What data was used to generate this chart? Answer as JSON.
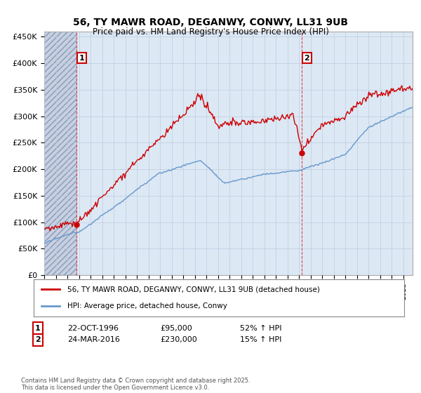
{
  "title": "56, TY MAWR ROAD, DEGANWY, CONWY, LL31 9UB",
  "subtitle": "Price paid vs. HM Land Registry's House Price Index (HPI)",
  "ylim": [
    0,
    460000
  ],
  "yticks": [
    0,
    50000,
    100000,
    150000,
    200000,
    250000,
    300000,
    350000,
    400000,
    450000
  ],
  "ytick_labels": [
    "£0",
    "£50K",
    "£100K",
    "£150K",
    "£200K",
    "£250K",
    "£300K",
    "£350K",
    "£400K",
    "£450K"
  ],
  "xlim_start": 1994.0,
  "xlim_end": 2025.8,
  "purchase1_date": 1996.81,
  "purchase1_price": 95000,
  "purchase1_label": "1",
  "purchase2_date": 2016.23,
  "purchase2_price": 230000,
  "purchase2_label": "2",
  "line_color_property": "#cc0000",
  "line_color_hpi": "#6699cc",
  "vline_color": "#dd4444",
  "bg_color": "#dde8f5",
  "hatch_color": "#c8d0e0",
  "grid_color": "#bbccdd",
  "legend_label_property": "56, TY MAWR ROAD, DEGANWY, CONWY, LL31 9UB (detached house)",
  "legend_label_hpi": "HPI: Average price, detached house, Conwy",
  "footer": "Contains HM Land Registry data © Crown copyright and database right 2025.\nThis data is licensed under the Open Government Licence v3.0."
}
